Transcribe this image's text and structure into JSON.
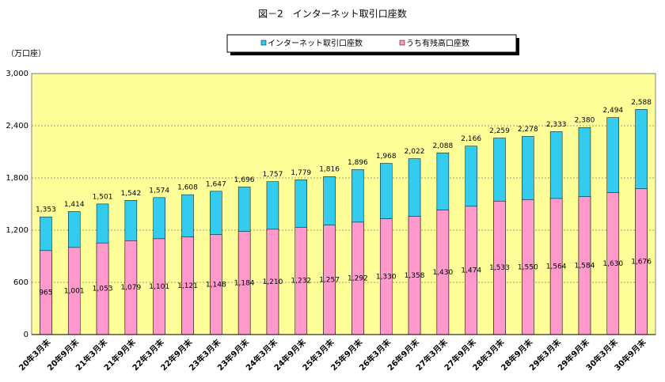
{
  "chart_data": {
    "type": "bar",
    "title": "図－2　インターネット取引口座数",
    "y_label": "（万口座）",
    "categories": [
      "20年3月末",
      "20年9月末",
      "21年3月末",
      "21年9月末",
      "22年3月末",
      "22年9月末",
      "23年3月末",
      "23年9月末",
      "24年3月末",
      "24年9月末",
      "25年3月末",
      "25年9月末",
      "26年3月末",
      "26年9月末",
      "27年3月末",
      "27年9月末",
      "28年3月末",
      "28年9月末",
      "29年3月末",
      "29年9月末",
      "30年3月末",
      "30年9月末"
    ],
    "series": [
      {
        "name": "インターネット取引口座数",
        "color": "#33ccee",
        "values": [
          1353,
          1414,
          1501,
          1542,
          1574,
          1608,
          1647,
          1696,
          1757,
          1779,
          1816,
          1896,
          1968,
          2022,
          2088,
          2166,
          2259,
          2278,
          2333,
          2380,
          2494,
          2588
        ],
        "value_labels": [
          "1,353",
          "1,414",
          "1,501",
          "1,542",
          "1,574",
          "1,608",
          "1,647",
          "1,696",
          "1,757",
          "1,779",
          "1,816",
          "1,896",
          "1,968",
          "2,022",
          "2,088",
          "2,166",
          "2,259",
          "2,278",
          "2,333",
          "2,380",
          "2,494",
          "2,588"
        ]
      },
      {
        "name": "うち有残高口座数",
        "color": "#ff99cc",
        "values": [
          965,
          1001,
          1053,
          1079,
          1101,
          1121,
          1148,
          1184,
          1210,
          1232,
          1257,
          1292,
          1330,
          1358,
          1430,
          1474,
          1533,
          1550,
          1564,
          1584,
          1630,
          1676
        ],
        "value_labels": [
          "965",
          "1,001",
          "1,053",
          "1,079",
          "1,101",
          "1,121",
          "1,148",
          "1,184",
          "1,210",
          "1,232",
          "1,257",
          "1,292",
          "1,330",
          "1,358",
          "1,430",
          "1,474",
          "1,533",
          "1,550",
          "1,564",
          "1,584",
          "1,630",
          "1,676"
        ]
      }
    ],
    "ylim": [
      0,
      3000
    ],
    "yticks": [
      0,
      600,
      {
        "value": 1200,
        "label": "1,200"
      },
      {
        "value": 1800,
        "label": "1,800"
      },
      {
        "value": 2400,
        "label": "2,400"
      },
      {
        "value": 3000,
        "label": "3,000"
      }
    ],
    "grid": true,
    "plot_background": "#ffff99",
    "legend": "top"
  }
}
